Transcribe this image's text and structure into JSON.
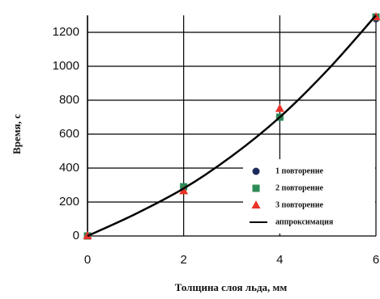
{
  "chart_data": {
    "type": "scatter",
    "x_label": "Толщина слоя льда, мм",
    "y_label": "Время, с",
    "xlim": [
      0,
      6
    ],
    "xticks": [
      0,
      2,
      4,
      6
    ],
    "ylim": [
      0,
      1300
    ],
    "yticks": [
      0,
      200,
      400,
      600,
      800,
      1000,
      1200
    ],
    "grid": true,
    "legend": "right",
    "series": [
      {
        "name": "1 повторение",
        "color": "#1f2a5c",
        "marker": "circle",
        "x": [
          0,
          2,
          4,
          6
        ],
        "values": [
          0,
          290,
          700,
          1280
        ]
      },
      {
        "name": "2 повторение",
        "color": "#2e8b57",
        "marker": "square",
        "x": [
          0,
          2,
          4,
          6
        ],
        "values": [
          0,
          290,
          700,
          1290
        ]
      },
      {
        "name": "3 повторение",
        "color": "#e8322a",
        "marker": "triangle",
        "x": [
          0,
          2,
          4,
          6
        ],
        "values": [
          0,
          265,
          750,
          1290
        ]
      },
      {
        "name": "аппроксимация",
        "color": "#000000",
        "marker": "line",
        "x": [
          0,
          1,
          2,
          3,
          4,
          5,
          6
        ],
        "values": [
          0,
          130,
          280,
          470,
          700,
          980,
          1300
        ]
      }
    ]
  }
}
